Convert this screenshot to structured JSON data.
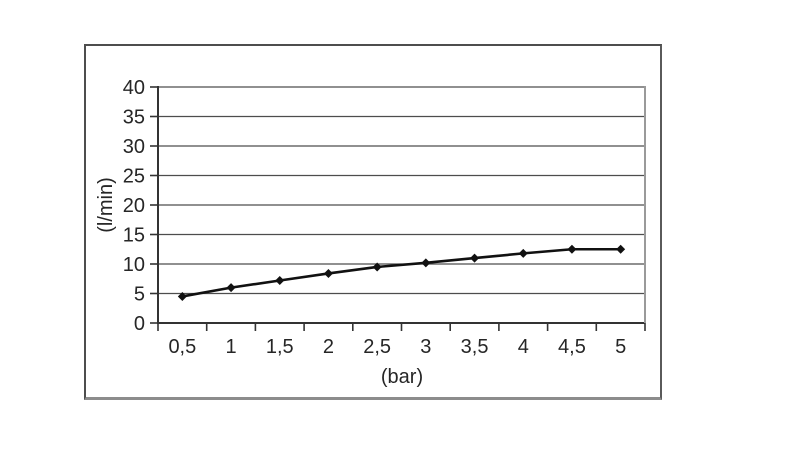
{
  "page": {
    "background_color": "#ffffff"
  },
  "frame": {
    "border_color": "#4d4d4d",
    "bottom_shadow_color": "#8c8c8c"
  },
  "chart_data": {
    "type": "line",
    "title": "",
    "xlabel": "(bar)",
    "ylabel": "(l/min)",
    "x": [
      0.5,
      1,
      1.5,
      2,
      2.5,
      3,
      3.5,
      4,
      4.5,
      5
    ],
    "categories": [
      "0,5",
      "1",
      "1,5",
      "2",
      "2,5",
      "3",
      "3,5",
      "4",
      "4,5",
      "5"
    ],
    "values": [
      4.5,
      6,
      7.2,
      8.4,
      9.5,
      10.2,
      11,
      11.8,
      12.5,
      12.5
    ],
    "ylim": [
      0,
      40
    ],
    "ytick_step": 5,
    "yticks": [
      "0",
      "5",
      "10",
      "15",
      "20",
      "25",
      "30",
      "35",
      "40"
    ],
    "grid": "horizontal-only",
    "legend": "none",
    "series_color": "#111111",
    "gridline_color": "#4d4d4d",
    "axis_color": "#333333",
    "plot_right_border_color": "#9a9a9a",
    "marker": "diamond",
    "decimal_separator": ","
  }
}
